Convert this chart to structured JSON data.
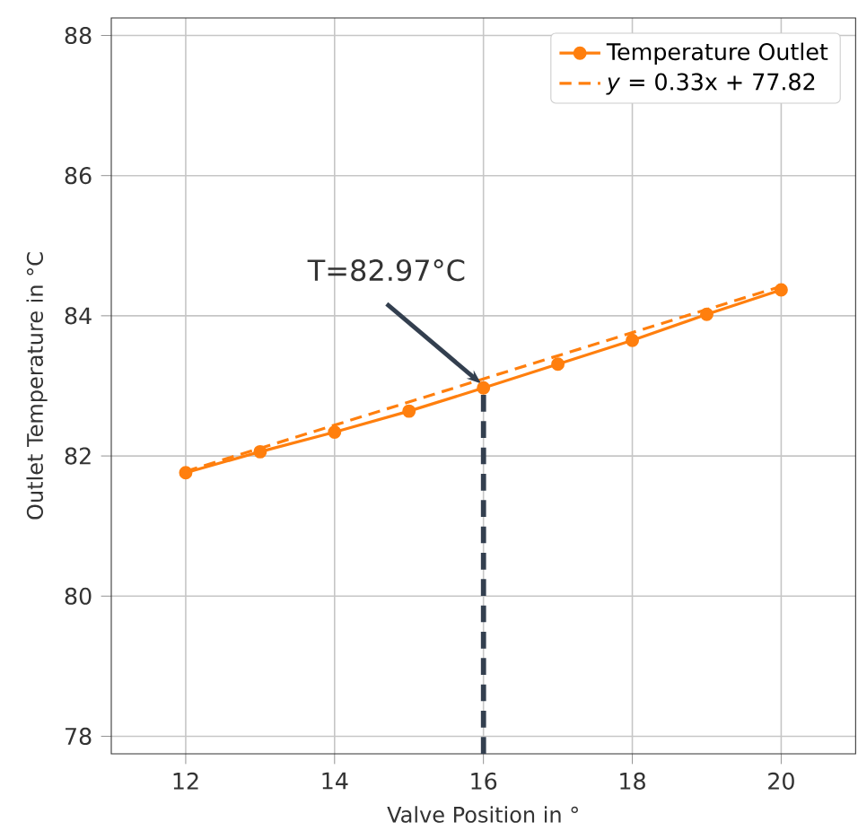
{
  "chart_data": {
    "type": "line",
    "xlabel": "Valve Position in °",
    "ylabel": "Outlet Temperature in °C",
    "xlim": [
      11,
      21
    ],
    "ylim": [
      77.75,
      88.25
    ],
    "xticks": [
      12,
      14,
      16,
      18,
      20
    ],
    "yticks": [
      78,
      80,
      82,
      84,
      86,
      88
    ],
    "grid": true,
    "legend": "top right",
    "series": [
      {
        "name": "Temperature Outlet",
        "color": "#ff7f0e",
        "marker": "circle",
        "line_style": "solid",
        "x": [
          12,
          13,
          14,
          15,
          16,
          17,
          18,
          19,
          20
        ],
        "values": [
          81.76,
          82.06,
          82.34,
          82.64,
          82.97,
          83.31,
          83.65,
          84.02,
          84.37
        ]
      },
      {
        "name": "*y* = 0.33x + 77.82",
        "color": "#ff7f0e",
        "marker": "none",
        "line_style": "dashed",
        "x": [
          12,
          20
        ],
        "values": [
          81.78,
          84.42
        ]
      },
      {
        "color": "#333f4f",
        "marker": "none",
        "line_style": "dashed",
        "x": [
          16,
          16
        ],
        "values": [
          77.75,
          82.97
        ]
      }
    ],
    "annotations": [
      {
        "text": "T=82.97°C",
        "x": 16,
        "y": 82.97
      }
    ]
  }
}
